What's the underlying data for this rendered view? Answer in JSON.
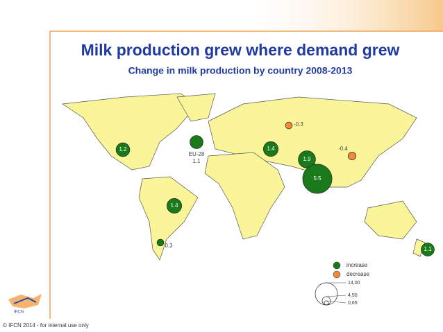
{
  "header": {
    "title": "Milk production grew where demand grew",
    "subtitle": "Change in milk production by country 2008-2013"
  },
  "map": {
    "increase_color": "#1a7a1a",
    "decrease_color": "#f08a3c",
    "bubbles": [
      {
        "value": 1.2
      },
      {
        "name": "EU-28",
        "value": 1.1
      },
      {
        "value": -0.3
      },
      {
        "value": 1.4
      },
      {
        "value": 1.9
      },
      {
        "value": -0.4
      },
      {
        "value": 5.5
      },
      {
        "value": 1.4
      },
      {
        "value": 0.3
      },
      {
        "value": 1.1
      }
    ]
  },
  "legend": {
    "items": [
      "increase",
      "decrease"
    ],
    "sizes": [
      "14,00",
      "4,50",
      "0,65"
    ]
  },
  "footer": "© IFCN 2014 - for internal use only"
}
